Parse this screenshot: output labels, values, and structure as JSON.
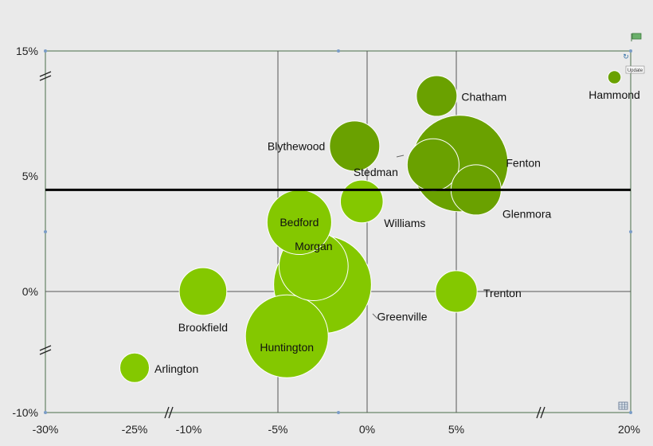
{
  "chart_data": {
    "type": "scatter",
    "subtype": "bubble",
    "title": "",
    "xlabel": "",
    "ylabel": "",
    "x_ticks": [
      "-30%",
      "-25%",
      "-10%",
      "-5%",
      "0%",
      "5%",
      "20%"
    ],
    "y_ticks": [
      "15%",
      "5%",
      "0%",
      "-10%"
    ],
    "axis_breaks": {
      "x": [
        "between -25% and -10%",
        "between 5% and 20%"
      ],
      "y": [
        "between 5% and 15%",
        "between -10% and 0%"
      ]
    },
    "reference_line": {
      "y": 4.4
    },
    "grid": {
      "vertical": [
        "-5%",
        "0%",
        "5%"
      ],
      "horizontal": [
        "0%"
      ]
    },
    "colors": {
      "bright": "#84c800",
      "dark": "#6aa100",
      "outline": "#ffffff",
      "reference_line": "#000000"
    },
    "bubbles": [
      {
        "label": "Arlington",
        "x": -25.0,
        "y": -6.3,
        "size": 1.0,
        "color": "#84c800"
      },
      {
        "label": "Brookfield",
        "x": -9.2,
        "y": 0.0,
        "size": 2.6,
        "color": "#84c800"
      },
      {
        "label": "Huntington",
        "x": -4.5,
        "y": -3.7,
        "size": 7.9,
        "color": "#84c800"
      },
      {
        "label": "Greenville",
        "x": -2.5,
        "y": 0.3,
        "size": 11.0,
        "color": "#84c800"
      },
      {
        "label": "Morgan",
        "x": -3.0,
        "y": 1.1,
        "size": 5.5,
        "color": "#84c800"
      },
      {
        "label": "Bedford",
        "x": -3.8,
        "y": 3.0,
        "size": 4.8,
        "color": "#84c800"
      },
      {
        "label": "Williams",
        "x": -0.3,
        "y": 3.9,
        "size": 2.1,
        "color": "#84c800"
      },
      {
        "label": "Trenton",
        "x": 5.0,
        "y": 0.0,
        "size": 2.0,
        "color": "#84c800"
      },
      {
        "label": "Blythewood",
        "x": -0.7,
        "y": 7.4,
        "size": 2.9,
        "color": "#6aa100"
      },
      {
        "label": "Chatham",
        "x": 3.9,
        "y": 11.4,
        "size": 1.9,
        "color": "#6aa100"
      },
      {
        "label": "Fenton",
        "x": 5.3,
        "y": 6.0,
        "size": 10.7,
        "color": "#6aa100"
      },
      {
        "label": "Stedman",
        "x": 3.7,
        "y": 5.9,
        "size": 3.1,
        "color": "#6aa100"
      },
      {
        "label": "Glenmora",
        "x": 6.7,
        "y": 4.4,
        "size": 2.9,
        "color": "#6aa100"
      },
      {
        "label": "Hammond",
        "x": 18.6,
        "y": 12.9,
        "size": 0.2,
        "color": "#6aa100"
      }
    ]
  },
  "toolbar": {
    "update_label": "Update",
    "flag_icon": "flag-icon",
    "refresh_icon": "refresh-icon",
    "table_icon": "table-icon"
  }
}
